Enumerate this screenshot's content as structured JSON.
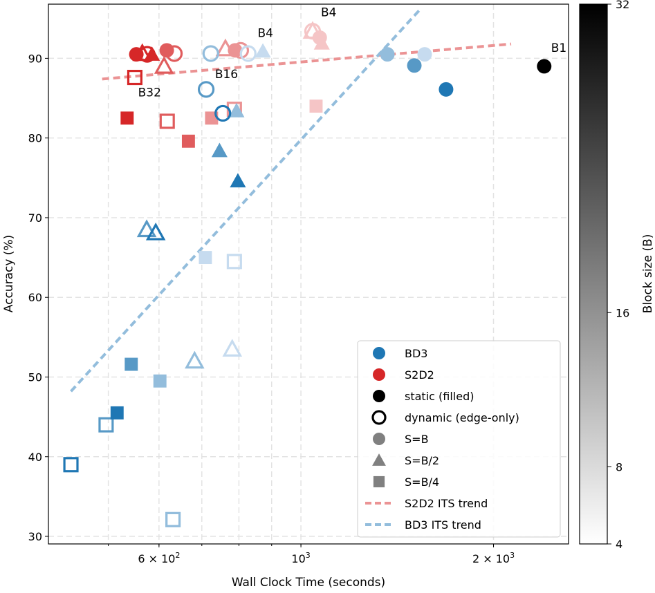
{
  "chart_data": {
    "type": "scatter",
    "xlabel": "Wall Clock Time (seconds)",
    "ylabel": "Accuracy (%)",
    "xscale": "log",
    "xlim": [
      403,
      2620
    ],
    "ylim": [
      29.05,
      96.8
    ],
    "grid": true,
    "x_ticks": [
      {
        "value": 600,
        "label": "6 × 10",
        "exp": "2"
      },
      {
        "value": 1000,
        "label": "10",
        "exp": "3"
      },
      {
        "value": 2000,
        "label": "2 × 10",
        "exp": "3"
      }
    ],
    "x_minor_grid": [
      500,
      600,
      700,
      800,
      900,
      1000,
      2000
    ],
    "y_ticks": [
      30,
      40,
      50,
      60,
      70,
      80,
      90
    ],
    "colorbar": {
      "label": "Block size (B)",
      "range": [
        4,
        32
      ],
      "ticks": [
        4,
        8,
        16,
        32
      ],
      "colormap": "greys"
    },
    "colors": {
      "BD3": {
        "4": "#c6dbef",
        "8": "#93bddc",
        "16": "#5799c6",
        "32": "#1f77b4"
      },
      "S2D2": {
        "4": "#f5c5c6",
        "8": "#eb9394",
        "16": "#e05c5d",
        "32": "#d62728"
      },
      "B1": "#000000"
    },
    "legend": {
      "placement": "lower-right",
      "entries": [
        {
          "label": "BD3",
          "marker": "circle",
          "style": "filled",
          "color": "#1f77b4"
        },
        {
          "label": "S2D2",
          "marker": "circle",
          "style": "filled",
          "color": "#d62728"
        },
        {
          "label": "static (filled)",
          "marker": "circle",
          "style": "filled",
          "color": "#000000"
        },
        {
          "label": "dynamic (edge-only)",
          "marker": "circle",
          "style": "hollow",
          "color": "#000000"
        },
        {
          "label": "S=B",
          "marker": "circle",
          "style": "filled",
          "color": "#808080"
        },
        {
          "label": "S=B/2",
          "marker": "triangle",
          "style": "filled",
          "color": "#808080"
        },
        {
          "label": "S=B/4",
          "marker": "square",
          "style": "filled",
          "color": "#808080"
        },
        {
          "label": "S2D2 ITS trend",
          "marker": "dashed-line",
          "color": "#eb9394"
        },
        {
          "label": "BD3 ITS trend",
          "marker": "dashed-line",
          "color": "#93bddc"
        }
      ]
    },
    "trends": [
      {
        "name": "S2D2 ITS trend",
        "color": "#eb9394",
        "x": [
          489,
          2131
        ],
        "y": [
          87.4,
          91.8
        ]
      },
      {
        "name": "BD3 ITS trend",
        "color": "#93bddc",
        "x": [
          437,
          1538
        ],
        "y": [
          48.2,
          96.2
        ]
      }
    ],
    "points": [
      {
        "model": "S2D2",
        "B": 32,
        "S": "B",
        "mode": "static",
        "x": 553,
        "y": 90.5
      },
      {
        "model": "S2D2",
        "B": 32,
        "S": "B",
        "mode": "dynamic",
        "x": 575,
        "y": 90.5
      },
      {
        "model": "S2D2",
        "B": 32,
        "S": "B/2",
        "mode": "static",
        "x": 585,
        "y": 90.5
      },
      {
        "model": "S2D2",
        "B": 32,
        "S": "B/2",
        "mode": "dynamic",
        "x": 565,
        "y": 90.6
      },
      {
        "model": "S2D2",
        "B": 32,
        "S": "B/4",
        "mode": "dynamic",
        "x": 550,
        "y": 87.6
      },
      {
        "model": "S2D2",
        "B": 32,
        "S": "B/4",
        "mode": "static",
        "x": 535,
        "y": 82.5
      },
      {
        "model": "S2D2",
        "B": 16,
        "S": "B",
        "mode": "static",
        "x": 617,
        "y": 91.0
      },
      {
        "model": "S2D2",
        "B": 16,
        "S": "B",
        "mode": "dynamic",
        "x": 634,
        "y": 90.6
      },
      {
        "model": "S2D2",
        "B": 16,
        "S": "B/2",
        "mode": "dynamic",
        "x": 611,
        "y": 89.0
      },
      {
        "model": "S2D2",
        "B": 16,
        "S": "B/4",
        "mode": "dynamic",
        "x": 618,
        "y": 82.1
      },
      {
        "model": "S2D2",
        "B": 16,
        "S": "B/4",
        "mode": "static",
        "x": 667,
        "y": 79.6
      },
      {
        "model": "S2D2",
        "B": 8,
        "S": "B/2",
        "mode": "dynamic",
        "x": 762,
        "y": 91.2
      },
      {
        "model": "S2D2",
        "B": 8,
        "S": "B",
        "mode": "static",
        "x": 789,
        "y": 91.0
      },
      {
        "model": "S2D2",
        "B": 8,
        "S": "B",
        "mode": "dynamic",
        "x": 805,
        "y": 91.0
      },
      {
        "model": "S2D2",
        "B": 8,
        "S": "B/4",
        "mode": "static",
        "x": 725,
        "y": 82.5
      },
      {
        "model": "S2D2",
        "B": 8,
        "S": "B/4",
        "mode": "dynamic",
        "x": 787,
        "y": 83.6
      },
      {
        "model": "S2D2",
        "B": 4,
        "S": "B",
        "mode": "dynamic",
        "x": 1043,
        "y": 93.4
      },
      {
        "model": "S2D2",
        "B": 4,
        "S": "B/2",
        "mode": "dynamic",
        "x": 1043,
        "y": 93.4
      },
      {
        "model": "S2D2",
        "B": 4,
        "S": "B",
        "mode": "static",
        "x": 1070,
        "y": 92.6
      },
      {
        "model": "S2D2",
        "B": 4,
        "S": "B/2",
        "mode": "static",
        "x": 1078,
        "y": 91.9
      },
      {
        "model": "S2D2",
        "B": 4,
        "S": "B/4",
        "mode": "static",
        "x": 1056,
        "y": 84.0
      },
      {
        "model": "BD3",
        "B": 4,
        "S": "B",
        "mode": "dynamic",
        "x": 827,
        "y": 90.6
      },
      {
        "model": "BD3",
        "B": 4,
        "S": "B/2",
        "mode": "static",
        "x": 872,
        "y": 90.9
      },
      {
        "model": "BD3",
        "B": 4,
        "S": "B",
        "mode": "static",
        "x": 1561,
        "y": 90.5
      },
      {
        "model": "BD3",
        "B": 4,
        "S": "B/4",
        "mode": "static",
        "x": 709,
        "y": 65.0
      },
      {
        "model": "BD3",
        "B": 4,
        "S": "B/4",
        "mode": "dynamic",
        "x": 787,
        "y": 64.5
      },
      {
        "model": "BD3",
        "B": 4,
        "S": "B/2",
        "mode": "dynamic",
        "x": 781,
        "y": 53.5
      },
      {
        "model": "BD3",
        "B": 4,
        "S": "B/4",
        "mode": "dynamic",
        "x": 631,
        "y": 32.1
      },
      {
        "model": "BD3",
        "B": 8,
        "S": "B",
        "mode": "dynamic",
        "x": 723,
        "y": 90.6
      },
      {
        "model": "BD3",
        "B": 8,
        "S": "B",
        "mode": "static",
        "x": 1365,
        "y": 90.5
      },
      {
        "model": "BD3",
        "B": 8,
        "S": "B/2",
        "mode": "static",
        "x": 793,
        "y": 83.4
      },
      {
        "model": "BD3",
        "B": 8,
        "S": "B/4",
        "mode": "static",
        "x": 602,
        "y": 49.5
      },
      {
        "model": "BD3",
        "B": 8,
        "S": "B/2",
        "mode": "dynamic",
        "x": 682,
        "y": 52.0
      },
      {
        "model": "BD3",
        "B": 8,
        "S": "B/4",
        "mode": "dynamic",
        "x": 631,
        "y": 32.1
      },
      {
        "model": "BD3",
        "B": 16,
        "S": "B",
        "mode": "dynamic",
        "x": 711,
        "y": 86.1
      },
      {
        "model": "BD3",
        "B": 16,
        "S": "B",
        "mode": "static",
        "x": 1504,
        "y": 89.1
      },
      {
        "model": "BD3",
        "B": 16,
        "S": "B/2",
        "mode": "static",
        "x": 746,
        "y": 78.4
      },
      {
        "model": "BD3",
        "B": 16,
        "S": "B/2",
        "mode": "dynamic",
        "x": 574,
        "y": 68.5
      },
      {
        "model": "BD3",
        "B": 16,
        "S": "B/4",
        "mode": "static",
        "x": 543,
        "y": 51.6
      },
      {
        "model": "BD3",
        "B": 16,
        "S": "B/4",
        "mode": "dynamic",
        "x": 496,
        "y": 44.0
      },
      {
        "model": "BD3",
        "B": 32,
        "S": "B",
        "mode": "static",
        "x": 1686,
        "y": 86.1
      },
      {
        "model": "BD3",
        "B": 32,
        "S": "B",
        "mode": "dynamic",
        "x": 755,
        "y": 83.1
      },
      {
        "model": "BD3",
        "B": 32,
        "S": "B/2",
        "mode": "static",
        "x": 797,
        "y": 74.6
      },
      {
        "model": "BD3",
        "B": 32,
        "S": "B/2",
        "mode": "dynamic",
        "x": 593,
        "y": 68.1
      },
      {
        "model": "BD3",
        "B": 32,
        "S": "B/4",
        "mode": "static",
        "x": 516,
        "y": 45.5
      },
      {
        "model": "BD3",
        "B": 32,
        "S": "B/4",
        "mode": "dynamic",
        "x": 437,
        "y": 39.0
      },
      {
        "model": "B1",
        "B": 1,
        "S": "B",
        "mode": "static",
        "x": 2400,
        "y": 89.0
      }
    ],
    "annotations": [
      {
        "text": "B1",
        "x": 2530,
        "y": 90.8
      },
      {
        "text": "B4",
        "x": 880,
        "y": 92.7
      },
      {
        "text": "B4",
        "x": 1105,
        "y": 95.3
      },
      {
        "text": "B16",
        "x": 765,
        "y": 87.5
      },
      {
        "text": "B32",
        "x": 580,
        "y": 85.2
      }
    ]
  }
}
